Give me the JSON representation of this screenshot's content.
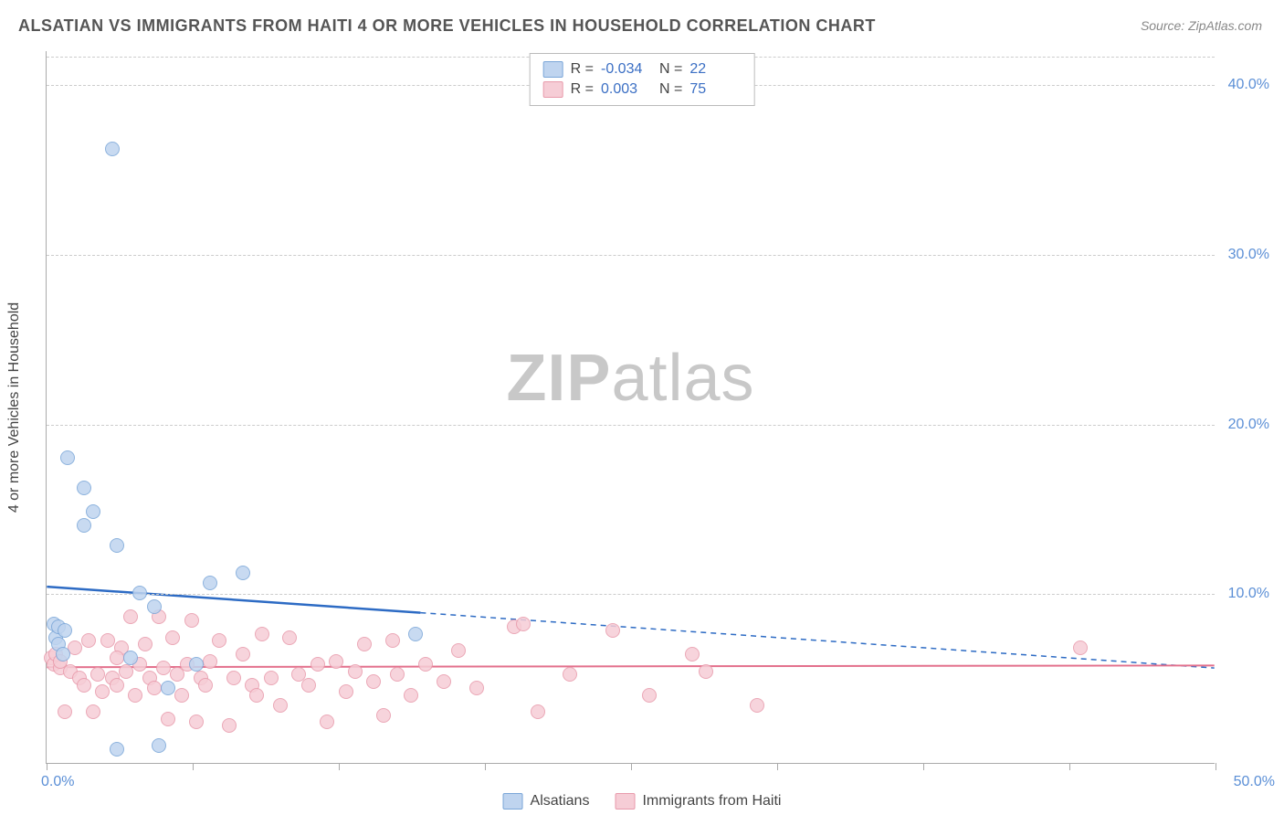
{
  "title": "ALSATIAN VS IMMIGRANTS FROM HAITI 4 OR MORE VEHICLES IN HOUSEHOLD CORRELATION CHART",
  "source": "Source: ZipAtlas.com",
  "watermark_bold": "ZIP",
  "watermark_light": "atlas",
  "chart": {
    "type": "scatter",
    "ylabel": "4 or more Vehicles in Household",
    "xlim": [
      0,
      50
    ],
    "ylim": [
      0,
      42
    ],
    "ytick_values": [
      10,
      20,
      30,
      40
    ],
    "ytick_labels": [
      "10.0%",
      "20.0%",
      "30.0%",
      "40.0%"
    ],
    "xtick_positions": [
      0,
      6.25,
      12.5,
      18.75,
      25,
      31.25,
      37.5,
      43.75,
      50
    ],
    "xtick_label_left": "0.0%",
    "xtick_label_right": "50.0%",
    "background_color": "#ffffff",
    "grid_color": "#cccccc",
    "series": [
      {
        "name": "Alsatians",
        "marker_fill": "#bfd4ef",
        "marker_stroke": "#7aa6d8",
        "marker_radius": 8,
        "trend_color": "#2d6bc4",
        "trend_width": 2.5,
        "trend": {
          "x1": 0,
          "y1": 10.4,
          "x2": 50,
          "y2": 5.6,
          "solid_until_x": 16
        },
        "R_label": "R =",
        "R_value": "-0.034",
        "N_label": "N =",
        "N_value": "22",
        "points": [
          [
            0.3,
            8.2
          ],
          [
            0.4,
            7.4
          ],
          [
            0.5,
            7.0
          ],
          [
            0.5,
            8.0
          ],
          [
            0.7,
            6.4
          ],
          [
            0.8,
            7.8
          ],
          [
            0.9,
            18.0
          ],
          [
            1.6,
            14.0
          ],
          [
            1.6,
            16.2
          ],
          [
            2.0,
            14.8
          ],
          [
            2.8,
            36.2
          ],
          [
            3.0,
            12.8
          ],
          [
            3.0,
            0.8
          ],
          [
            4.0,
            10.0
          ],
          [
            3.6,
            6.2
          ],
          [
            4.6,
            9.2
          ],
          [
            4.8,
            1.0
          ],
          [
            5.2,
            4.4
          ],
          [
            6.4,
            5.8
          ],
          [
            7.0,
            10.6
          ],
          [
            8.4,
            11.2
          ],
          [
            15.8,
            7.6
          ]
        ]
      },
      {
        "name": "Immigrants from Haiti",
        "marker_fill": "#f6cdd6",
        "marker_stroke": "#e89aab",
        "marker_radius": 8,
        "trend_color": "#e3708c",
        "trend_width": 2,
        "trend": {
          "x1": 0,
          "y1": 5.65,
          "x2": 50,
          "y2": 5.75,
          "solid_until_x": 50
        },
        "R_label": "R =",
        "R_value": "0.003",
        "N_label": "N =",
        "N_value": "75",
        "points": [
          [
            0.2,
            6.2
          ],
          [
            0.3,
            5.8
          ],
          [
            0.4,
            6.4
          ],
          [
            0.6,
            5.6
          ],
          [
            0.6,
            6.0
          ],
          [
            0.8,
            3.0
          ],
          [
            1.0,
            5.4
          ],
          [
            1.2,
            6.8
          ],
          [
            1.4,
            5.0
          ],
          [
            1.6,
            4.6
          ],
          [
            1.8,
            7.2
          ],
          [
            2.0,
            3.0
          ],
          [
            2.2,
            5.2
          ],
          [
            2.4,
            4.2
          ],
          [
            2.6,
            7.2
          ],
          [
            2.8,
            5.0
          ],
          [
            3.0,
            4.6
          ],
          [
            3.2,
            6.8
          ],
          [
            3.4,
            5.4
          ],
          [
            3.6,
            8.6
          ],
          [
            3.8,
            4.0
          ],
          [
            4.0,
            5.8
          ],
          [
            4.2,
            7.0
          ],
          [
            4.4,
            5.0
          ],
          [
            4.6,
            4.4
          ],
          [
            4.8,
            8.6
          ],
          [
            5.0,
            5.6
          ],
          [
            5.2,
            2.6
          ],
          [
            5.4,
            7.4
          ],
          [
            5.6,
            5.2
          ],
          [
            5.8,
            4.0
          ],
          [
            6.0,
            5.8
          ],
          [
            6.2,
            8.4
          ],
          [
            6.4,
            2.4
          ],
          [
            6.6,
            5.0
          ],
          [
            6.8,
            4.6
          ],
          [
            7.0,
            6.0
          ],
          [
            7.4,
            7.2
          ],
          [
            7.8,
            2.2
          ],
          [
            8.0,
            5.0
          ],
          [
            8.4,
            6.4
          ],
          [
            8.8,
            4.6
          ],
          [
            9.2,
            7.6
          ],
          [
            9.6,
            5.0
          ],
          [
            10.0,
            3.4
          ],
          [
            10.4,
            7.4
          ],
          [
            10.8,
            5.2
          ],
          [
            11.2,
            4.6
          ],
          [
            11.6,
            5.8
          ],
          [
            12.0,
            2.4
          ],
          [
            12.4,
            6.0
          ],
          [
            12.8,
            4.2
          ],
          [
            13.2,
            5.4
          ],
          [
            13.6,
            7.0
          ],
          [
            14.0,
            4.8
          ],
          [
            14.4,
            2.8
          ],
          [
            15.0,
            5.2
          ],
          [
            15.6,
            4.0
          ],
          [
            16.2,
            5.8
          ],
          [
            17.0,
            4.8
          ],
          [
            17.6,
            6.6
          ],
          [
            18.4,
            4.4
          ],
          [
            20.0,
            8.0
          ],
          [
            20.4,
            8.2
          ],
          [
            21.0,
            3.0
          ],
          [
            22.4,
            5.2
          ],
          [
            24.2,
            7.8
          ],
          [
            25.8,
            4.0
          ],
          [
            27.6,
            6.4
          ],
          [
            28.2,
            5.4
          ],
          [
            30.4,
            3.4
          ],
          [
            44.2,
            6.8
          ],
          [
            14.8,
            7.2
          ],
          [
            9.0,
            4.0
          ],
          [
            3.0,
            6.2
          ]
        ]
      }
    ]
  },
  "bottom_legend": {
    "items": [
      {
        "label": "Alsatians",
        "fill": "#bfd4ef",
        "stroke": "#7aa6d8"
      },
      {
        "label": "Immigrants from Haiti",
        "fill": "#f6cdd6",
        "stroke": "#e89aab"
      }
    ]
  }
}
